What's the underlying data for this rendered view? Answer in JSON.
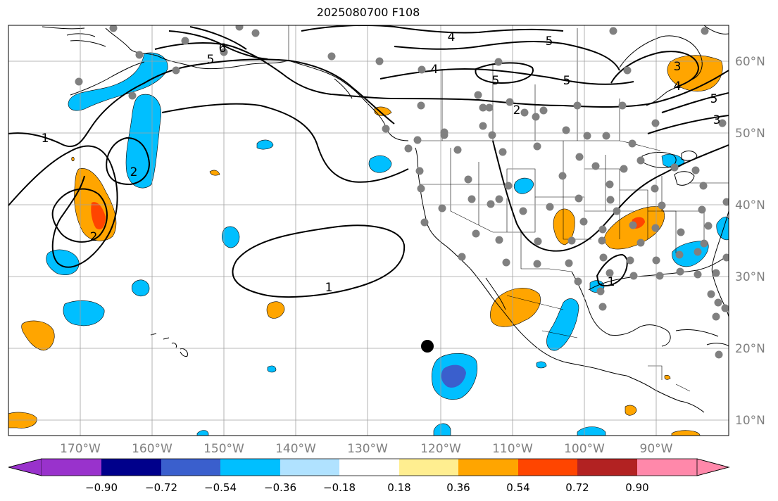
{
  "title": "2025080700 F108",
  "lon_ticks": [
    "170°W",
    "160°W",
    "150°W",
    "140°W",
    "130°W",
    "120°W",
    "110°W",
    "100°W",
    "90°W"
  ],
  "lat_ticks": [
    "60°N",
    "50°N",
    "40°N",
    "30°N",
    "20°N",
    "10°N"
  ],
  "contour_labels": [
    "1",
    "2",
    "2",
    "1",
    "4",
    "4",
    "5",
    "5",
    "5",
    "6",
    "2",
    "5",
    "3",
    "4",
    "5",
    "3",
    "1"
  ],
  "colorbar": {
    "ticks": [
      "−0.90",
      "−0.72",
      "−0.54",
      "−0.36",
      "−0.18",
      "0.18",
      "0.36",
      "0.54",
      "0.72",
      "0.90"
    ],
    "colors": [
      "#9932cc",
      "#00008b",
      "#3a5fcd",
      "#00bfff",
      "#b0e2ff",
      "#ffffff",
      "#ffee90",
      "#ffa500",
      "#ff4500",
      "#b22222",
      "#ff88aa"
    ]
  },
  "colors": {
    "land_outline": "#000000",
    "grid": "#a0a0a0",
    "station": "#808080",
    "marker": "#000000",
    "pos_fill": "#ffa500",
    "pos_strong": "#ff4500",
    "neg_fill": "#00bfff",
    "neg_strong": "#3a5fcd"
  }
}
